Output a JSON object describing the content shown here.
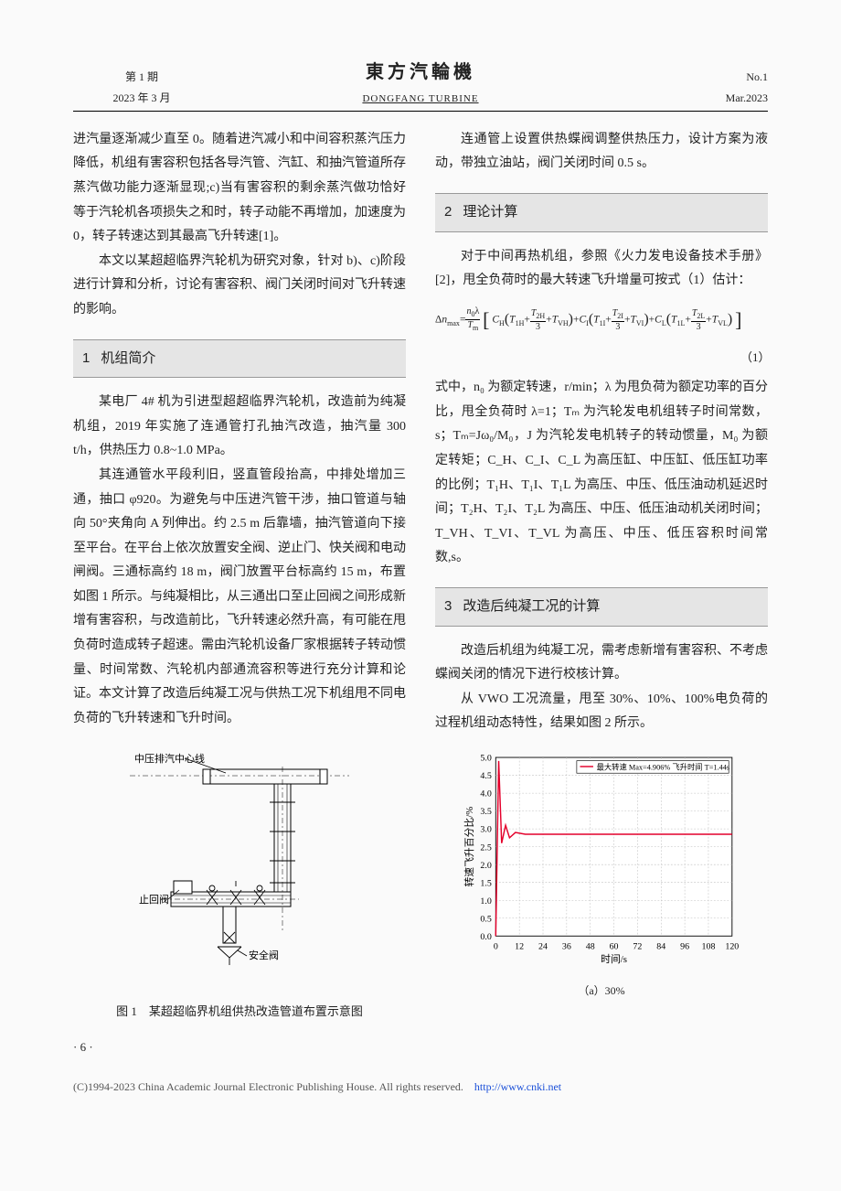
{
  "header": {
    "issue_cn": "第 1 期",
    "date_cn": "2023 年 3 月",
    "journal_cn": "東方汽輪機",
    "journal_en": "DONGFANG TURBINE",
    "issue_en": "No.1",
    "date_en": "Mar.2023"
  },
  "left": {
    "para1": "进汽量逐渐减少直至 0。随着进汽减小和中间容积蒸汽压力降低，机组有害容积包括各导汽管、汽缸、和抽汽管道所存蒸汽做功能力逐渐显现;c)当有害容积的剩余蒸汽做功恰好等于汽轮机各项损失之和时，转子动能不再增加，加速度为 0，转子转速达到其最高飞升转速[1]。",
    "para2": "本文以某超超临界汽轮机为研究对象，针对 b)、c)阶段进行计算和分析，讨论有害容积、阀门关闭时间对飞升转速的影响。",
    "s1_title": "机组简介",
    "s1_num": "1",
    "s1_p1": "某电厂 4# 机为引进型超超临界汽轮机，改造前为纯凝机组，2019 年实施了连通管打孔抽汽改造，抽汽量 300 t/h，供热压力 0.8~1.0 MPa。",
    "s1_p2": "其连通管水平段利旧，竖直管段抬高，中排处增加三通，抽口 φ920。为避免与中压进汽管干涉，抽口管道与轴向 50°夹角向 A 列伸出。约 2.5 m 后靠墙，抽汽管道向下接至平台。在平台上依次放置安全阀、逆止门、快关阀和电动闸阀。三通标高约 18 m，阀门放置平台标高约 15 m，布置如图 1 所示。与纯凝相比，从三通出口至止回阀之间形成新增有害容积，与改造前比，飞升转速必然升高，有可能在甩负荷时造成转子超速。需由汽轮机设备厂家根据转子转动惯量、时间常数、汽轮机内部通流容积等进行充分计算和论证。本文计算了改造后纯凝工况与供热工况下机组甩不同电负荷的飞升转速和飞升时间。",
    "fig1_label_top": "中压排汽中心线",
    "fig1_label_valve1": "止回阀",
    "fig1_label_valve2": "安全阀",
    "fig1_caption": "图 1　某超超临界机组供热改造管道布置示意图"
  },
  "right": {
    "para1": "连通管上设置供热蝶阀调整供热压力，设计方案为液动，带独立油站，阀门关闭时间 0.5 s。",
    "s2_title": "理论计算",
    "s2_num": "2",
    "s2_p1": "对于中间再热机组，参照《火力发电设备技术手册》[2]，甩全负荷时的最大转速飞升增量可按式（1）估计：",
    "eq_num": "（1）",
    "s2_p2": "式中，n₀ 为额定转速，r/min；λ 为甩负荷为额定功率的百分比，甩全负荷时 λ=1；Tₘ 为汽轮发电机组转子时间常数，s；Tₘ=Jω₀/M₀，J 为汽轮发电机转子的转动惯量，M₀ 为额定转矩；C_H、C_I、C_L 为高压缸、中压缸、低压缸功率的比例；T₁H、T₁I、T₁L 为高压、中压、低压油动机延迟时间；T₂H、T₂I、T₂L 为高压、中压、低压油动机关闭时间；T_VH、T_VI、T_VL 为高压、中压、低压容积时间常数,s。",
    "s3_title": "改造后纯凝工况的计算",
    "s3_num": "3",
    "s3_p1": "改造后机组为纯凝工况，需考虑新增有害容积、不考虑蝶阀关闭的情况下进行校核计算。",
    "s3_p2": "从 VWO 工况流量，甩至 30%、10%、100%电负荷的过程机组动态特性，结果如图 2 所示。",
    "chart": {
      "legend": "最大转速 Max=4.906% 飞升时间 T=1.44s",
      "xlabel": "时间/s",
      "ylabel": "转速飞升百分比/%",
      "xlim": [
        0,
        120
      ],
      "xtick_step": 12,
      "ylim": [
        0,
        5.0
      ],
      "ytick_step": 0.5,
      "line_color": "#e4002b",
      "grid_color": "#bdbdbd",
      "bg_color": "#ffffff",
      "series": [
        [
          0,
          0
        ],
        [
          1.5,
          4.9
        ],
        [
          3,
          2.6
        ],
        [
          5,
          3.1
        ],
        [
          7,
          2.75
        ],
        [
          10,
          2.9
        ],
        [
          15,
          2.85
        ],
        [
          20,
          2.85
        ],
        [
          30,
          2.85
        ],
        [
          48,
          2.85
        ],
        [
          72,
          2.85
        ],
        [
          96,
          2.85
        ],
        [
          120,
          2.85
        ]
      ]
    },
    "fig2_sub": "（a）30%"
  },
  "footer": {
    "page": "· 6 ·",
    "copyright": "(C)1994-2023 China Academic Journal Electronic Publishing House. All rights reserved.",
    "url": "http://www.cnki.net"
  }
}
